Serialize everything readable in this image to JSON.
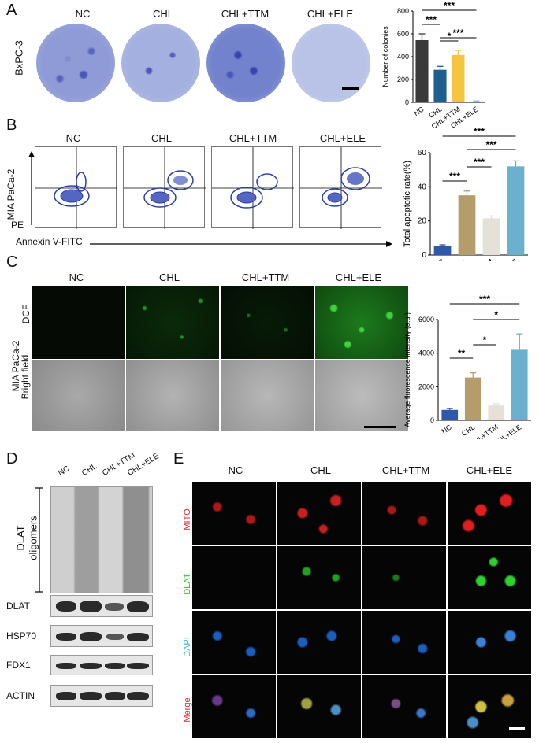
{
  "panels": {
    "a": {
      "label": "A",
      "cell_line": "BxPC-3",
      "groups": [
        "NC",
        "CHL",
        "CHL+TTM",
        "CHL+ELE"
      ]
    },
    "b": {
      "label": "B",
      "cell_line": "MIA PaCa-2",
      "groups": [
        "NC",
        "CHL",
        "CHL+TTM",
        "CHL+ELE"
      ],
      "y_axis": "PE",
      "x_axis": "Annexin V-FITC"
    },
    "c": {
      "label": "C",
      "cell_line": "MIA PaCa-2",
      "groups": [
        "NC",
        "CHL",
        "CHL+TTM",
        "CHL+ELE"
      ],
      "rows": [
        "DCF",
        "Bright field"
      ]
    },
    "d": {
      "label": "D",
      "groups": [
        "NC",
        "CHL",
        "CHL+TTM",
        "CHL+ELE"
      ],
      "bracket_label_1": "DLAT",
      "bracket_label_2": "oligomers",
      "blots": [
        "DLAT",
        "HSP70",
        "FDX1",
        "ACTIN"
      ]
    },
    "e": {
      "label": "E",
      "groups": [
        "NC",
        "CHL",
        "CHL+TTM",
        "CHL+ELE"
      ],
      "rows": [
        "MITO",
        "DLAT",
        "DAPI",
        "Merge"
      ],
      "row_colors": [
        "#e8202a",
        "#22c022",
        "#2bb5e8",
        "#e8202a"
      ]
    }
  },
  "chart_data": [
    {
      "type": "bar",
      "panel": "A",
      "categories": [
        "NC",
        "CHL",
        "CHL+TTM",
        "CHL+ELE"
      ],
      "values": [
        545,
        285,
        415,
        8
      ],
      "errors": [
        55,
        30,
        40,
        4
      ],
      "ylabel": "Number of colonies",
      "ylim": [
        0,
        800
      ],
      "yticks": [
        "0",
        "200",
        "400",
        "600",
        "800"
      ],
      "colors": [
        "#3a3a3a",
        "#1f5f8e",
        "#f6c540",
        "#8fb7d6"
      ],
      "significance": [
        {
          "from": 0,
          "to": 1,
          "label": "***"
        },
        {
          "from": 1,
          "to": 2,
          "label": "*"
        },
        {
          "from": 1,
          "to": 3,
          "label": "***"
        },
        {
          "from": 0,
          "to": 3,
          "label": "***"
        }
      ]
    },
    {
      "type": "bar",
      "panel": "B",
      "categories": [
        "NC",
        "CHL",
        "CHL+TTM",
        "CHL+ELE"
      ],
      "values": [
        5.2,
        35,
        21.5,
        52
      ],
      "errors": [
        0.8,
        2.5,
        1.5,
        3.2
      ],
      "ylabel": "Total apoptotic rate(%)",
      "ylim": [
        0,
        60
      ],
      "yticks": [
        "0",
        "20",
        "40",
        "60"
      ],
      "colors": [
        "#2d59a8",
        "#b59d6b",
        "#e5e0d8",
        "#6bb0cc"
      ],
      "significance": [
        {
          "from": 0,
          "to": 1,
          "label": "***"
        },
        {
          "from": 1,
          "to": 2,
          "label": "***"
        },
        {
          "from": 1,
          "to": 3,
          "label": "***"
        },
        {
          "from": 0,
          "to": 3,
          "label": "***"
        }
      ]
    },
    {
      "type": "bar",
      "panel": "C",
      "categories": [
        "NC",
        "CHL",
        "CHL+TTM",
        "CHL+ELE"
      ],
      "values": [
        620,
        2550,
        880,
        4200
      ],
      "errors": [
        80,
        280,
        100,
        950
      ],
      "ylabel": "Average fluorescence intensity (a.u.)",
      "ylim": [
        0,
        6000
      ],
      "yticks": [
        "0",
        "2000",
        "4000",
        "6000"
      ],
      "colors": [
        "#2d59a8",
        "#b59d6b",
        "#e5e0d8",
        "#6bb0cc"
      ],
      "significance": [
        {
          "from": 0,
          "to": 1,
          "label": "**"
        },
        {
          "from": 1,
          "to": 2,
          "label": "*"
        },
        {
          "from": 1,
          "to": 3,
          "label": "*"
        },
        {
          "from": 0,
          "to": 3,
          "label": "***"
        }
      ]
    }
  ]
}
